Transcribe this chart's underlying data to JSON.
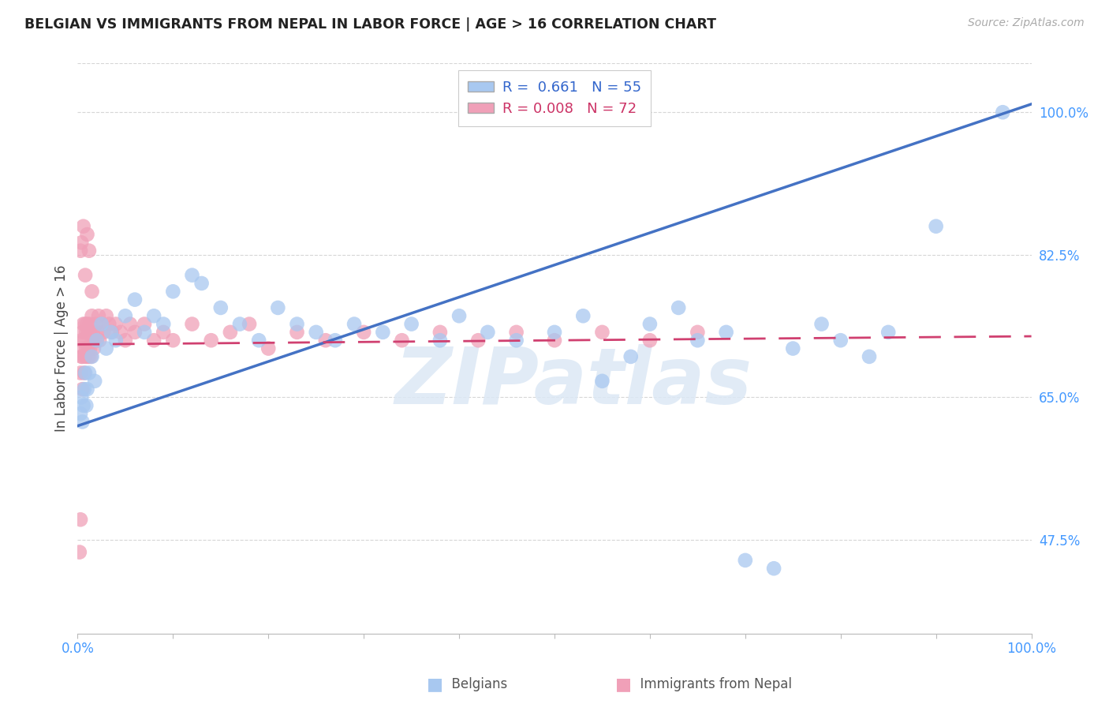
{
  "title": "BELGIAN VS IMMIGRANTS FROM NEPAL IN LABOR FORCE | AGE > 16 CORRELATION CHART",
  "source": "Source: ZipAtlas.com",
  "ylabel": "In Labor Force | Age > 16",
  "xlim": [
    0.0,
    1.0
  ],
  "ylim": [
    0.36,
    1.06
  ],
  "x_ticks": [
    0.0,
    0.1,
    0.2,
    0.3,
    0.4,
    0.5,
    0.6,
    0.7,
    0.8,
    0.9,
    1.0
  ],
  "y_tick_positions": [
    0.475,
    0.65,
    0.825,
    1.0
  ],
  "y_tick_labels": [
    "47.5%",
    "65.0%",
    "82.5%",
    "100.0%"
  ],
  "grid_color": "#cccccc",
  "background_color": "#ffffff",
  "belgians_color": "#a8c8f0",
  "nepal_color": "#f0a0b8",
  "belgians_R": 0.661,
  "belgians_N": 55,
  "nepal_R": 0.008,
  "nepal_N": 72,
  "belgians_line_color": "#4472c4",
  "nepal_line_color": "#d04070",
  "watermark_text": "ZIPatlas",
  "watermark_color": "#e0e8f0",
  "belgians_x": [
    0.003,
    0.004,
    0.005,
    0.006,
    0.007,
    0.008,
    0.009,
    0.01,
    0.012,
    0.015,
    0.018,
    0.02,
    0.025,
    0.03,
    0.035,
    0.04,
    0.05,
    0.06,
    0.07,
    0.08,
    0.09,
    0.1,
    0.12,
    0.13,
    0.15,
    0.17,
    0.19,
    0.21,
    0.23,
    0.25,
    0.27,
    0.29,
    0.32,
    0.35,
    0.38,
    0.4,
    0.43,
    0.46,
    0.5,
    0.53,
    0.55,
    0.58,
    0.6,
    0.63,
    0.65,
    0.68,
    0.7,
    0.73,
    0.75,
    0.78,
    0.8,
    0.83,
    0.85,
    0.9,
    0.97
  ],
  "belgians_y": [
    0.63,
    0.65,
    0.62,
    0.64,
    0.66,
    0.68,
    0.64,
    0.66,
    0.68,
    0.7,
    0.67,
    0.72,
    0.74,
    0.71,
    0.73,
    0.72,
    0.75,
    0.77,
    0.73,
    0.75,
    0.74,
    0.78,
    0.8,
    0.79,
    0.76,
    0.74,
    0.72,
    0.76,
    0.74,
    0.73,
    0.72,
    0.74,
    0.73,
    0.74,
    0.72,
    0.75,
    0.73,
    0.72,
    0.73,
    0.75,
    0.67,
    0.7,
    0.74,
    0.76,
    0.72,
    0.73,
    0.45,
    0.44,
    0.71,
    0.74,
    0.72,
    0.7,
    0.73,
    0.86,
    1.0
  ],
  "nepal_x": [
    0.002,
    0.003,
    0.003,
    0.004,
    0.004,
    0.005,
    0.005,
    0.005,
    0.006,
    0.006,
    0.007,
    0.007,
    0.008,
    0.008,
    0.009,
    0.009,
    0.01,
    0.01,
    0.011,
    0.011,
    0.012,
    0.012,
    0.013,
    0.013,
    0.014,
    0.015,
    0.015,
    0.016,
    0.017,
    0.018,
    0.019,
    0.02,
    0.021,
    0.022,
    0.023,
    0.025,
    0.027,
    0.03,
    0.033,
    0.036,
    0.04,
    0.045,
    0.05,
    0.055,
    0.06,
    0.07,
    0.08,
    0.09,
    0.1,
    0.12,
    0.14,
    0.16,
    0.18,
    0.2,
    0.23,
    0.26,
    0.3,
    0.34,
    0.38,
    0.42,
    0.46,
    0.5,
    0.55,
    0.6,
    0.65,
    0.003,
    0.004,
    0.006,
    0.008,
    0.01,
    0.012,
    0.015
  ],
  "nepal_y": [
    0.46,
    0.5,
    0.68,
    0.7,
    0.72,
    0.66,
    0.7,
    0.73,
    0.71,
    0.74,
    0.68,
    0.72,
    0.7,
    0.74,
    0.71,
    0.73,
    0.7,
    0.74,
    0.71,
    0.73,
    0.7,
    0.73,
    0.71,
    0.74,
    0.7,
    0.72,
    0.75,
    0.73,
    0.71,
    0.72,
    0.74,
    0.72,
    0.73,
    0.75,
    0.72,
    0.74,
    0.73,
    0.75,
    0.74,
    0.73,
    0.74,
    0.73,
    0.72,
    0.74,
    0.73,
    0.74,
    0.72,
    0.73,
    0.72,
    0.74,
    0.72,
    0.73,
    0.74,
    0.71,
    0.73,
    0.72,
    0.73,
    0.72,
    0.73,
    0.72,
    0.73,
    0.72,
    0.73,
    0.72,
    0.73,
    0.83,
    0.84,
    0.86,
    0.8,
    0.85,
    0.83,
    0.78
  ],
  "belgians_line_x0": 0.0,
  "belgians_line_y0": 0.615,
  "belgians_line_x1": 1.0,
  "belgians_line_y1": 1.01,
  "nepal_line_x0": 0.0,
  "nepal_line_y0": 0.715,
  "nepal_line_x1": 1.0,
  "nepal_line_y1": 0.725
}
